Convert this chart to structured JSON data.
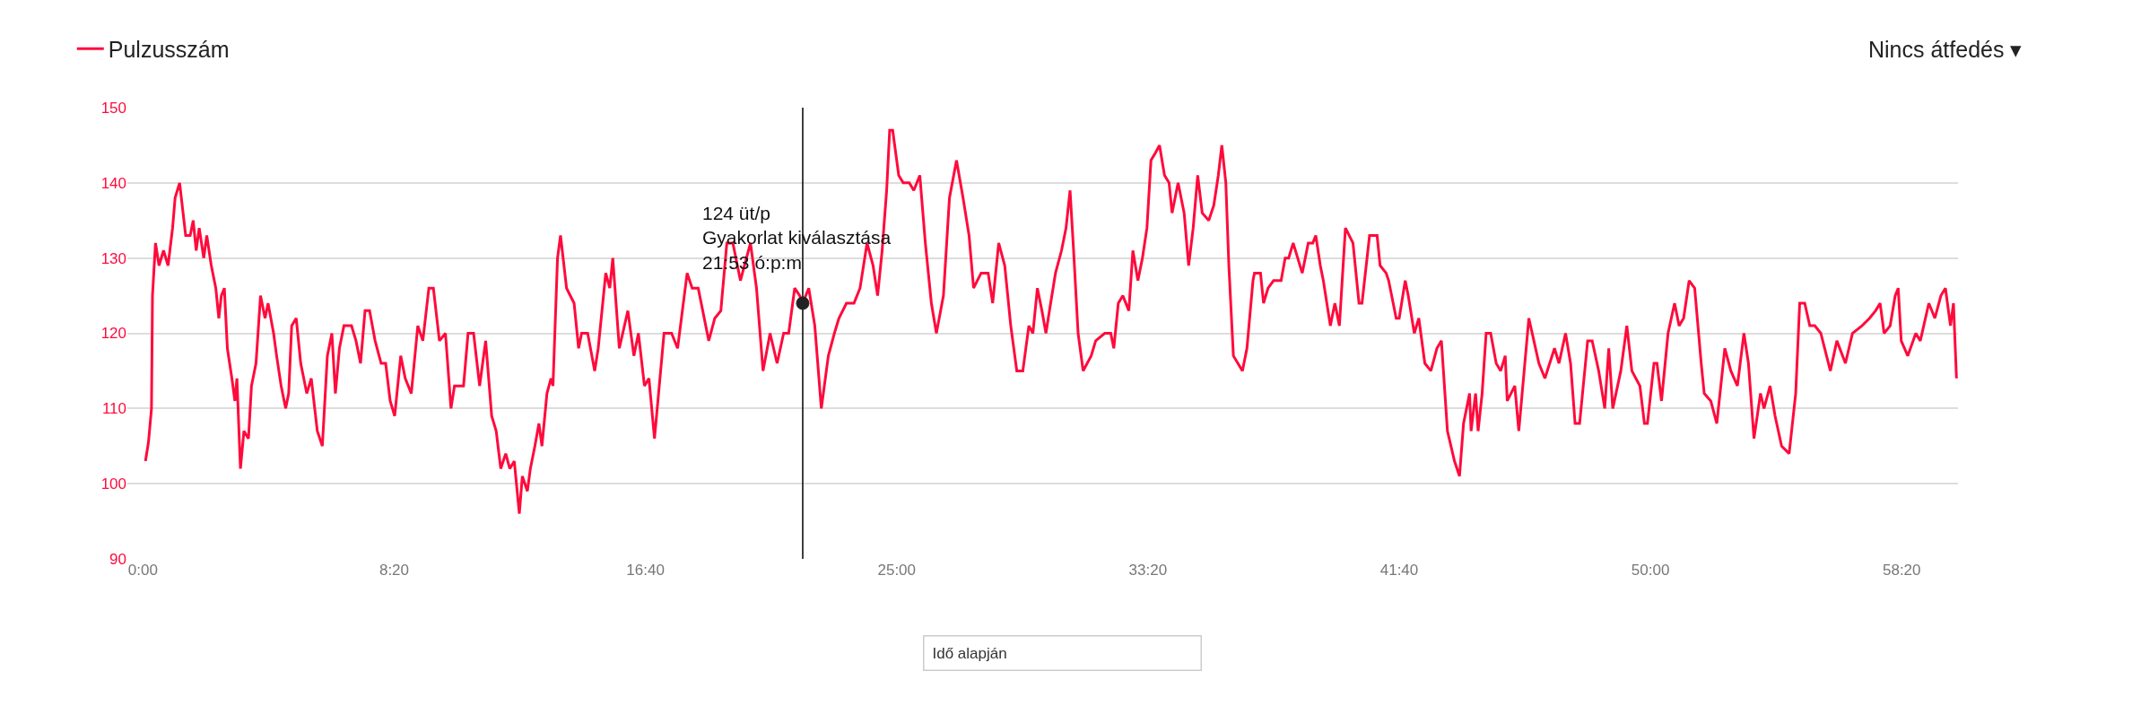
{
  "chart_data": {
    "type": "line",
    "x": [
      5,
      11,
      17,
      19,
      25,
      32,
      41,
      50,
      59,
      64,
      73,
      85,
      94,
      100,
      106,
      112,
      121,
      127,
      136,
      145,
      151,
      156,
      162,
      168,
      177,
      183,
      187,
      194,
      201,
      210,
      216,
      225,
      234,
      243,
      249,
      260,
      266,
      275,
      284,
      290,
      296,
      305,
      314,
      326,
      335,
      347,
      357,
      367,
      376,
      383,
      391,
      400,
      415,
      424,
      433,
      442,
      451,
      462,
      474,
      483,
      492,
      501,
      513,
      522,
      534,
      547,
      557,
      569,
      578,
      590,
      602,
      613,
      620,
      638,
      647,
      658,
      670,
      682,
      694,
      703,
      712,
      722,
      730,
      739,
      749,
      755,
      765,
      771,
      780,
      788,
      794,
      804,
      812,
      816,
      825,
      831,
      843,
      858,
      867,
      873,
      885,
      899,
      906,
      921,
      929,
      935,
      948,
      965,
      977,
      986,
      998,
      1007,
      1018,
      1037,
      1052,
      1064,
      1083,
      1093,
      1105,
      1114,
      1126,
      1138,
      1150,
      1162,
      1174,
      1189,
      1209,
      1221,
      1234,
      1248,
      1262,
      1275,
      1285,
      1297,
      1307,
      1313,
      1325,
      1337,
      1350,
      1364,
      1376,
      1385,
      1400,
      1415,
      1427,
      1441,
      1453,
      1462,
      1471,
      1480,
      1486,
      1492,
      1504,
      1513,
      1525,
      1534,
      1546,
      1557,
      1569,
      1579,
      1593,
      1605,
      1619,
      1632,
      1644,
      1653,
      1668,
      1682,
      1691,
      1703,
      1715,
      1727,
      1739,
      1751,
      1763,
      1771,
      1780,
      1789,
      1797,
      1804,
      1816,
      1828,
      1837,
      1845,
      1852,
      1861,
      1871,
      1887,
      1896,
      1914,
      1926,
      1932,
      1941,
      1950,
      1962,
      1970,
      1980,
      1989,
      1998,
      2006,
      2015,
      2023,
      2033,
      2042,
      2048,
      2060,
      2072,
      2081,
      2090,
      2099,
      2108,
      2121,
      2131,
      2140,
      2147,
      2155,
      2161,
      2170,
      2179,
      2188,
      2197,
      2209,
      2212,
      2224,
      2230,
      2239,
      2250,
      2265,
      2273,
      2280,
      2289,
      2298,
      2307,
      2319,
      2328,
      2334,
      2343,
      2349,
      2363,
      2372,
      2381,
      2393,
      2408,
      2420,
      2426,
      2441,
      2456,
      2462,
      2474,
      2479,
      2494,
      2500,
      2512,
      2518,
      2530,
      2539,
      2551,
      2563,
      2575,
      2584,
      2596,
      2610,
      2620,
      2628,
      2640,
      2643,
      2652,
      2657,
      2665,
      2673,
      2682,
      2693,
      2702,
      2711,
      2715,
      2730,
      2738,
      2746,
      2758,
      2768,
      2778,
      2790,
      2809,
      2818,
      2831,
      2841,
      2850,
      2859,
      2875,
      2884,
      2897,
      2909,
      2917,
      2925,
      2941,
      2953,
      2963,
      2979,
      2988,
      2994,
      3007,
      3013,
      3022,
      3035,
      3048,
      3057,
      3066,
      3077,
      3088,
      3101,
      3107,
      3120,
      3132,
      3148,
      3160,
      3173,
      3186,
      3195,
      3206,
      3219,
      3226,
      3238,
      3248,
      3261,
      3276,
      3289,
      3297,
      3307,
      3317,
      3327,
      3339,
      3358,
      3371,
      3388,
      3402,
      3421,
      3436,
      3448,
      3457,
      3465,
      3477,
      3487,
      3493,
      3499,
      3512,
      3528,
      3537,
      3554,
      3566,
      3578,
      3587,
      3597,
      3603,
      3609
    ],
    "series": [
      {
        "name": "Pulzusszám",
        "color": "#ff0a3c",
        "values": [
          103,
          105.5,
          110,
          125,
          132,
          129,
          131,
          129,
          134,
          138,
          140,
          133,
          133,
          135,
          131,
          134,
          130,
          133,
          129,
          126,
          122,
          125,
          126,
          118,
          114,
          111,
          114,
          102,
          107,
          106,
          113,
          116,
          125,
          122,
          124,
          120,
          117,
          113,
          110,
          112,
          121,
          122,
          116,
          112,
          114,
          107,
          105,
          117,
          120,
          112,
          118,
          121,
          121,
          119,
          116,
          123,
          123,
          119,
          116,
          116,
          111,
          109,
          117,
          114,
          112,
          121,
          119,
          126,
          126,
          119,
          120,
          110,
          113,
          113,
          120,
          120,
          113,
          119,
          109,
          107,
          102,
          104,
          102,
          103,
          96,
          101,
          99,
          102,
          105,
          108,
          105,
          112,
          114,
          113,
          130,
          133,
          126,
          124,
          118,
          120,
          120,
          115,
          118,
          128,
          126,
          130,
          118,
          123,
          117,
          120,
          113,
          114,
          106,
          120,
          120,
          118,
          128,
          126,
          126,
          123,
          119,
          122,
          123,
          132,
          132,
          127,
          132,
          126,
          115,
          120,
          116,
          120,
          120,
          126,
          125,
          124,
          126,
          121,
          110,
          117,
          120,
          122,
          124,
          124,
          126,
          132,
          129,
          125,
          131,
          139,
          147,
          147,
          141,
          140,
          140,
          139,
          141,
          132,
          124,
          120,
          125,
          138,
          143,
          138,
          133,
          126,
          128,
          128,
          124,
          132,
          129,
          121,
          115,
          115,
          121,
          120,
          126,
          123,
          120,
          123,
          128,
          131,
          134,
          139,
          131,
          120,
          115,
          117,
          119,
          120,
          120,
          118,
          124,
          125,
          123,
          131,
          127,
          130,
          134,
          143,
          144,
          145,
          141,
          140,
          136,
          140,
          136,
          129,
          134,
          141,
          136,
          135,
          137,
          141,
          145,
          140,
          129,
          117,
          116,
          115,
          118,
          127,
          128,
          128,
          124,
          126,
          127,
          127,
          130,
          130,
          132,
          130,
          128,
          132,
          132,
          133,
          129,
          127,
          121,
          124,
          121,
          134,
          132,
          124,
          124,
          133,
          133,
          129,
          128,
          127,
          122,
          122,
          127,
          125,
          120,
          122,
          116,
          115,
          118,
          119,
          107,
          103,
          101,
          108,
          112,
          107,
          112,
          107,
          112,
          120,
          120,
          116,
          115,
          117,
          111,
          113,
          107,
          113,
          122,
          119,
          116,
          114,
          118,
          116,
          120,
          116,
          108,
          108,
          119,
          119,
          115,
          110,
          118,
          110,
          115,
          121,
          115,
          113,
          108,
          108,
          116,
          116,
          111,
          120,
          124,
          121,
          122,
          127,
          126,
          116,
          112,
          111,
          108,
          118,
          115,
          113,
          120,
          116,
          106,
          112,
          110,
          113,
          109,
          105,
          104,
          112,
          124,
          124,
          121,
          121,
          120,
          115,
          119,
          116,
          120,
          121,
          122,
          123,
          124,
          120,
          121,
          125,
          126,
          119,
          117,
          120,
          119,
          124,
          122,
          125,
          126,
          121,
          124,
          114
        ]
      }
    ],
    "xlim": [
      -31,
      3612
    ],
    "xticks": [
      {
        "value": 0,
        "label": "0:00"
      },
      {
        "value": 500,
        "label": "8:20"
      },
      {
        "value": 1000,
        "label": "16:40"
      },
      {
        "value": 1500,
        "label": "25:00"
      },
      {
        "value": 2000,
        "label": "33:20"
      },
      {
        "value": 2500,
        "label": "41:40"
      },
      {
        "value": 3000,
        "label": "50:00"
      },
      {
        "value": 3500,
        "label": "58:20"
      }
    ],
    "ylim": [
      90,
      150
    ],
    "yticks": [
      90,
      100,
      110,
      120,
      130,
      140,
      150
    ],
    "grid": "y",
    "legend": "top left",
    "marker": "none",
    "line_style": "solid",
    "ref_lines": [
      {
        "axis": "x",
        "value": 1313,
        "color": "#000000"
      }
    ],
    "annotations": [
      {
        "text": "124 üt/p\nGyakorlat kiválasztása\n21:53 ó:p:m",
        "x": 1313,
        "y": 124
      },
      "Nincs átfedés ▾",
      "Idő alapján"
    ]
  }
}
